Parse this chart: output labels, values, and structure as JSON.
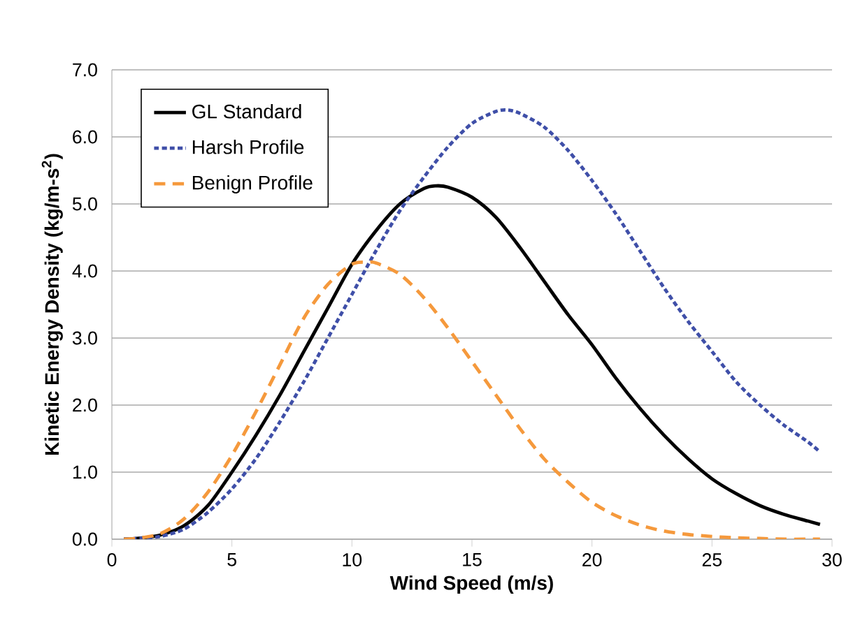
{
  "chart_data": {
    "type": "line",
    "xlabel": "Wind Speed (m/s)",
    "ylabel": "Kinetic Energy Density (kg/m-s$^{2}$)",
    "xlim": [
      0,
      30
    ],
    "xticks": [
      0,
      5,
      10,
      15,
      20,
      25,
      30
    ],
    "ylim": [
      0,
      7
    ],
    "yticks": [
      {
        "value": 0,
        "label": "0.0"
      },
      {
        "value": 1,
        "label": "1.0"
      },
      {
        "value": 2,
        "label": "2.0"
      },
      {
        "value": 3,
        "label": "3.0"
      },
      {
        "value": 4,
        "label": "4.0"
      },
      {
        "value": 5,
        "label": "5.0"
      },
      {
        "value": 6,
        "label": "6.0"
      },
      {
        "value": 7,
        "label": "7.0"
      }
    ],
    "grid": "y",
    "legend": "top left",
    "marker": "none",
    "series": [
      {
        "name": "GL Standard",
        "color": "#000000",
        "line_style": "solid",
        "x": [
          0.5,
          1,
          2,
          3,
          4,
          5,
          6,
          7,
          8,
          9,
          10,
          11,
          12,
          13,
          13.5,
          14,
          15,
          16,
          17,
          18,
          19,
          20,
          21,
          22,
          23,
          24,
          25,
          26,
          27,
          28,
          29,
          29.5
        ],
        "values": [
          0,
          0.01,
          0.06,
          0.2,
          0.5,
          1.0,
          1.55,
          2.15,
          2.8,
          3.45,
          4.1,
          4.6,
          5.0,
          5.23,
          5.27,
          5.25,
          5.1,
          4.8,
          4.35,
          3.85,
          3.35,
          2.9,
          2.4,
          1.95,
          1.55,
          1.2,
          0.9,
          0.68,
          0.5,
          0.37,
          0.27,
          0.22
        ]
      },
      {
        "name": "Harsh Profile",
        "color": "#3f4fa8",
        "line_style": "dotted",
        "x": [
          0.5,
          1,
          2,
          3,
          4,
          5,
          6,
          7,
          8,
          9,
          10,
          11,
          12,
          13,
          14,
          15,
          16,
          16.5,
          17,
          18,
          19,
          20,
          21,
          22,
          23,
          24,
          25,
          26,
          27,
          28,
          29,
          29.5
        ],
        "values": [
          0,
          0.01,
          0.04,
          0.15,
          0.4,
          0.75,
          1.2,
          1.75,
          2.35,
          3.0,
          3.65,
          4.3,
          4.9,
          5.4,
          5.85,
          6.2,
          6.38,
          6.4,
          6.35,
          6.15,
          5.8,
          5.35,
          4.85,
          4.3,
          3.75,
          3.25,
          2.8,
          2.35,
          2.0,
          1.7,
          1.45,
          1.3
        ]
      },
      {
        "name": "Benign Profile",
        "color": "#f5993c",
        "line_style": "dashed",
        "x": [
          0.5,
          1,
          2,
          3,
          4,
          5,
          6,
          7,
          8,
          9,
          10,
          10.7,
          11,
          12,
          13,
          14,
          15,
          16,
          17,
          18,
          19,
          20,
          21,
          22,
          23,
          24,
          25,
          26,
          27,
          28,
          29,
          29.5
        ],
        "values": [
          0,
          0.01,
          0.08,
          0.3,
          0.7,
          1.25,
          1.9,
          2.6,
          3.3,
          3.8,
          4.1,
          4.13,
          4.12,
          3.95,
          3.6,
          3.15,
          2.65,
          2.15,
          1.65,
          1.2,
          0.85,
          0.55,
          0.35,
          0.21,
          0.12,
          0.07,
          0.04,
          0.02,
          0.01,
          0.0,
          0.0,
          0.0
        ]
      }
    ]
  }
}
